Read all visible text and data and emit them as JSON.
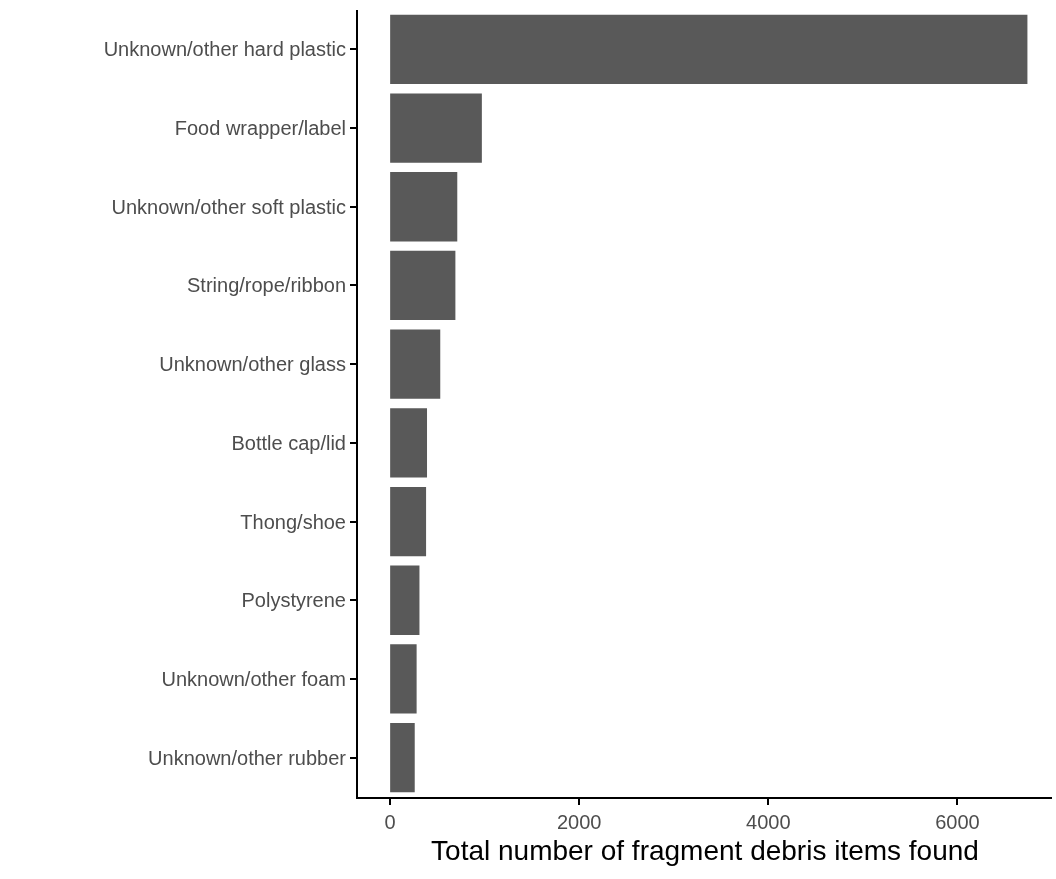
{
  "chart_data": {
    "type": "bar",
    "orientation": "horizontal",
    "xlabel": "Total number of fragment debris items found",
    "categories": [
      "Unknown/other hard plastic",
      "Food wrapper/label",
      "Unknown/other soft plastic",
      "String/rope/ribbon",
      "Unknown/other glass",
      "Bottle cap/lid",
      "Thong/shoe",
      "Polystyrene",
      "Unknown/other foam",
      "Unknown/other rubber"
    ],
    "values": [
      6740,
      970,
      710,
      690,
      530,
      390,
      380,
      310,
      280,
      260
    ],
    "color": "#595959",
    "xlim": [
      -340,
      7000
    ],
    "xticks": [
      0,
      2000,
      4000,
      6000
    ]
  }
}
